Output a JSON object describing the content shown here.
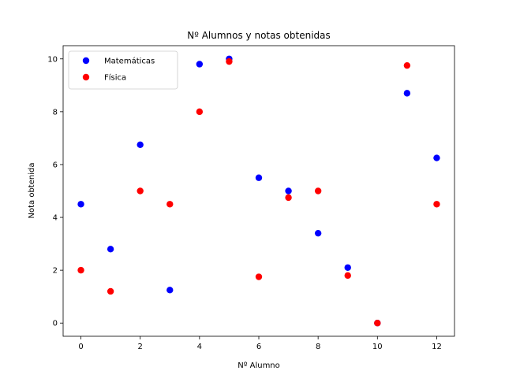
{
  "chart_data": {
    "type": "scatter",
    "title": "Nº Alumnos y notas obtenidas",
    "xlabel": "Nº Alumno",
    "ylabel": "Nota obtenida",
    "xlim": [
      -0.6,
      12.6
    ],
    "ylim": [
      -0.5,
      10.5
    ],
    "xticks": [
      0,
      2,
      4,
      6,
      8,
      10,
      12
    ],
    "yticks": [
      0,
      2,
      4,
      6,
      8,
      10
    ],
    "legend_position": "upper-left",
    "grid": false,
    "series": [
      {
        "name": "Matemáticas",
        "color": "#0000ff",
        "x": [
          0,
          1,
          2,
          3,
          4,
          5,
          6,
          7,
          8,
          9,
          10,
          11,
          12
        ],
        "y": [
          4.5,
          2.8,
          6.75,
          1.25,
          9.8,
          10.0,
          5.5,
          5.0,
          3.4,
          2.1,
          0.0,
          8.7,
          6.25
        ]
      },
      {
        "name": "Física",
        "color": "#ff0000",
        "x": [
          0,
          1,
          2,
          3,
          4,
          5,
          6,
          7,
          8,
          9,
          10,
          11,
          12
        ],
        "y": [
          2.0,
          1.2,
          5.0,
          4.5,
          8.0,
          9.9,
          1.75,
          4.75,
          5.0,
          1.8,
          0.0,
          9.75,
          4.5
        ]
      }
    ]
  }
}
